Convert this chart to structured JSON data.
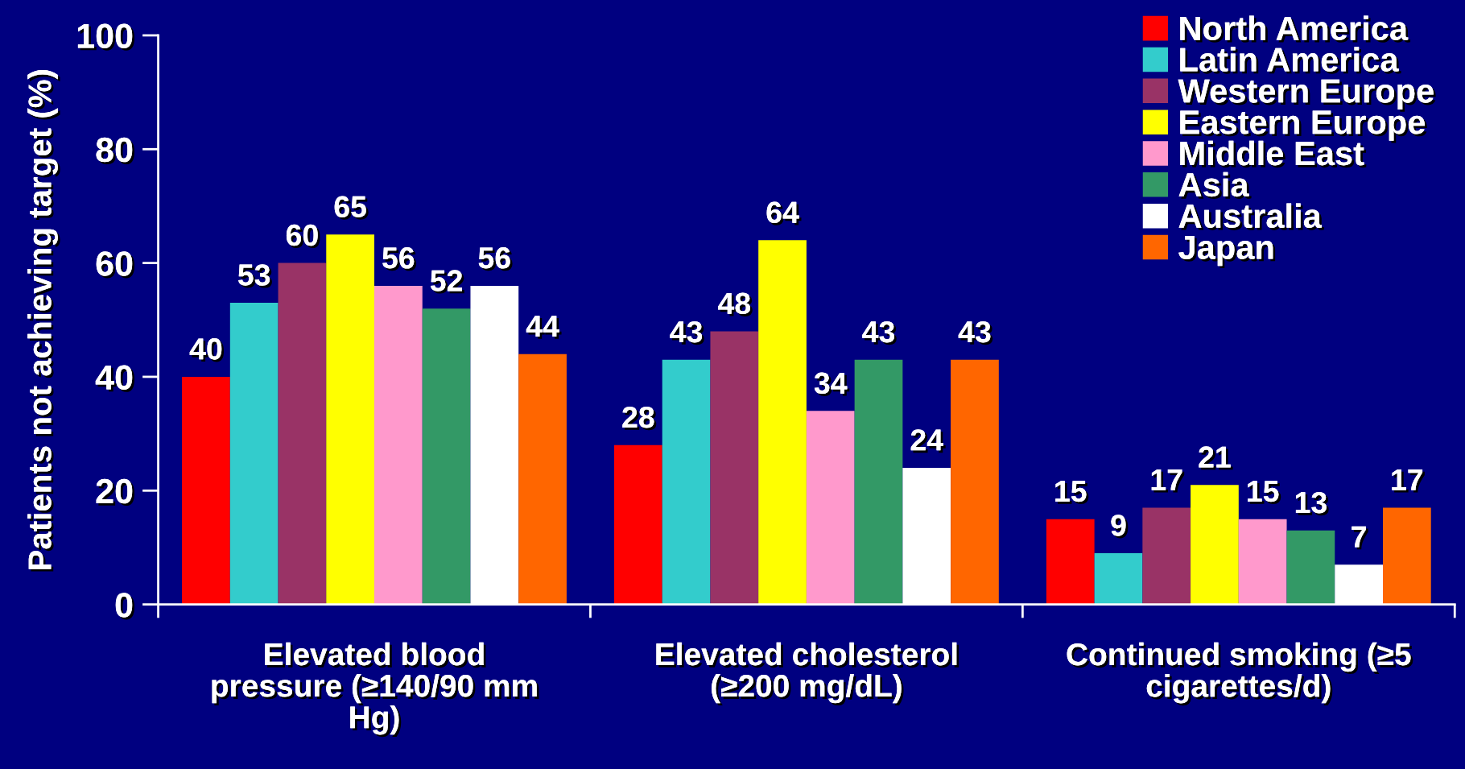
{
  "chart_data": {
    "type": "bar",
    "ylabel": "Patients not achieving target (%)",
    "categories": [
      "Elevated blood\npressure (≥140/90 mm\nHg)",
      "Elevated cholesterol\n(≥200 mg/dL)",
      "Continued smoking (≥5\ncigarettes/d)"
    ],
    "series": [
      {
        "name": "North America",
        "color": "#ff0000",
        "values": [
          40,
          28,
          15
        ]
      },
      {
        "name": "Latin America",
        "color": "#33cccc",
        "values": [
          53,
          43,
          9
        ]
      },
      {
        "name": "Western Europe",
        "color": "#993366",
        "values": [
          60,
          48,
          17
        ]
      },
      {
        "name": "Eastern Europe",
        "color": "#ffff00",
        "values": [
          65,
          64,
          21
        ]
      },
      {
        "name": "Middle East",
        "color": "#ff99cc",
        "values": [
          56,
          34,
          15
        ]
      },
      {
        "name": "Asia",
        "color": "#339966",
        "values": [
          52,
          43,
          13
        ]
      },
      {
        "name": "Australia",
        "color": "#ffffff",
        "values": [
          56,
          24,
          7
        ]
      },
      {
        "name": "Japan",
        "color": "#ff6600",
        "values": [
          44,
          43,
          17
        ]
      }
    ],
    "ylim": [
      0,
      100
    ],
    "yticks": [
      0,
      20,
      40,
      60,
      80,
      100
    ],
    "data_labels": true,
    "legend": "top right"
  }
}
